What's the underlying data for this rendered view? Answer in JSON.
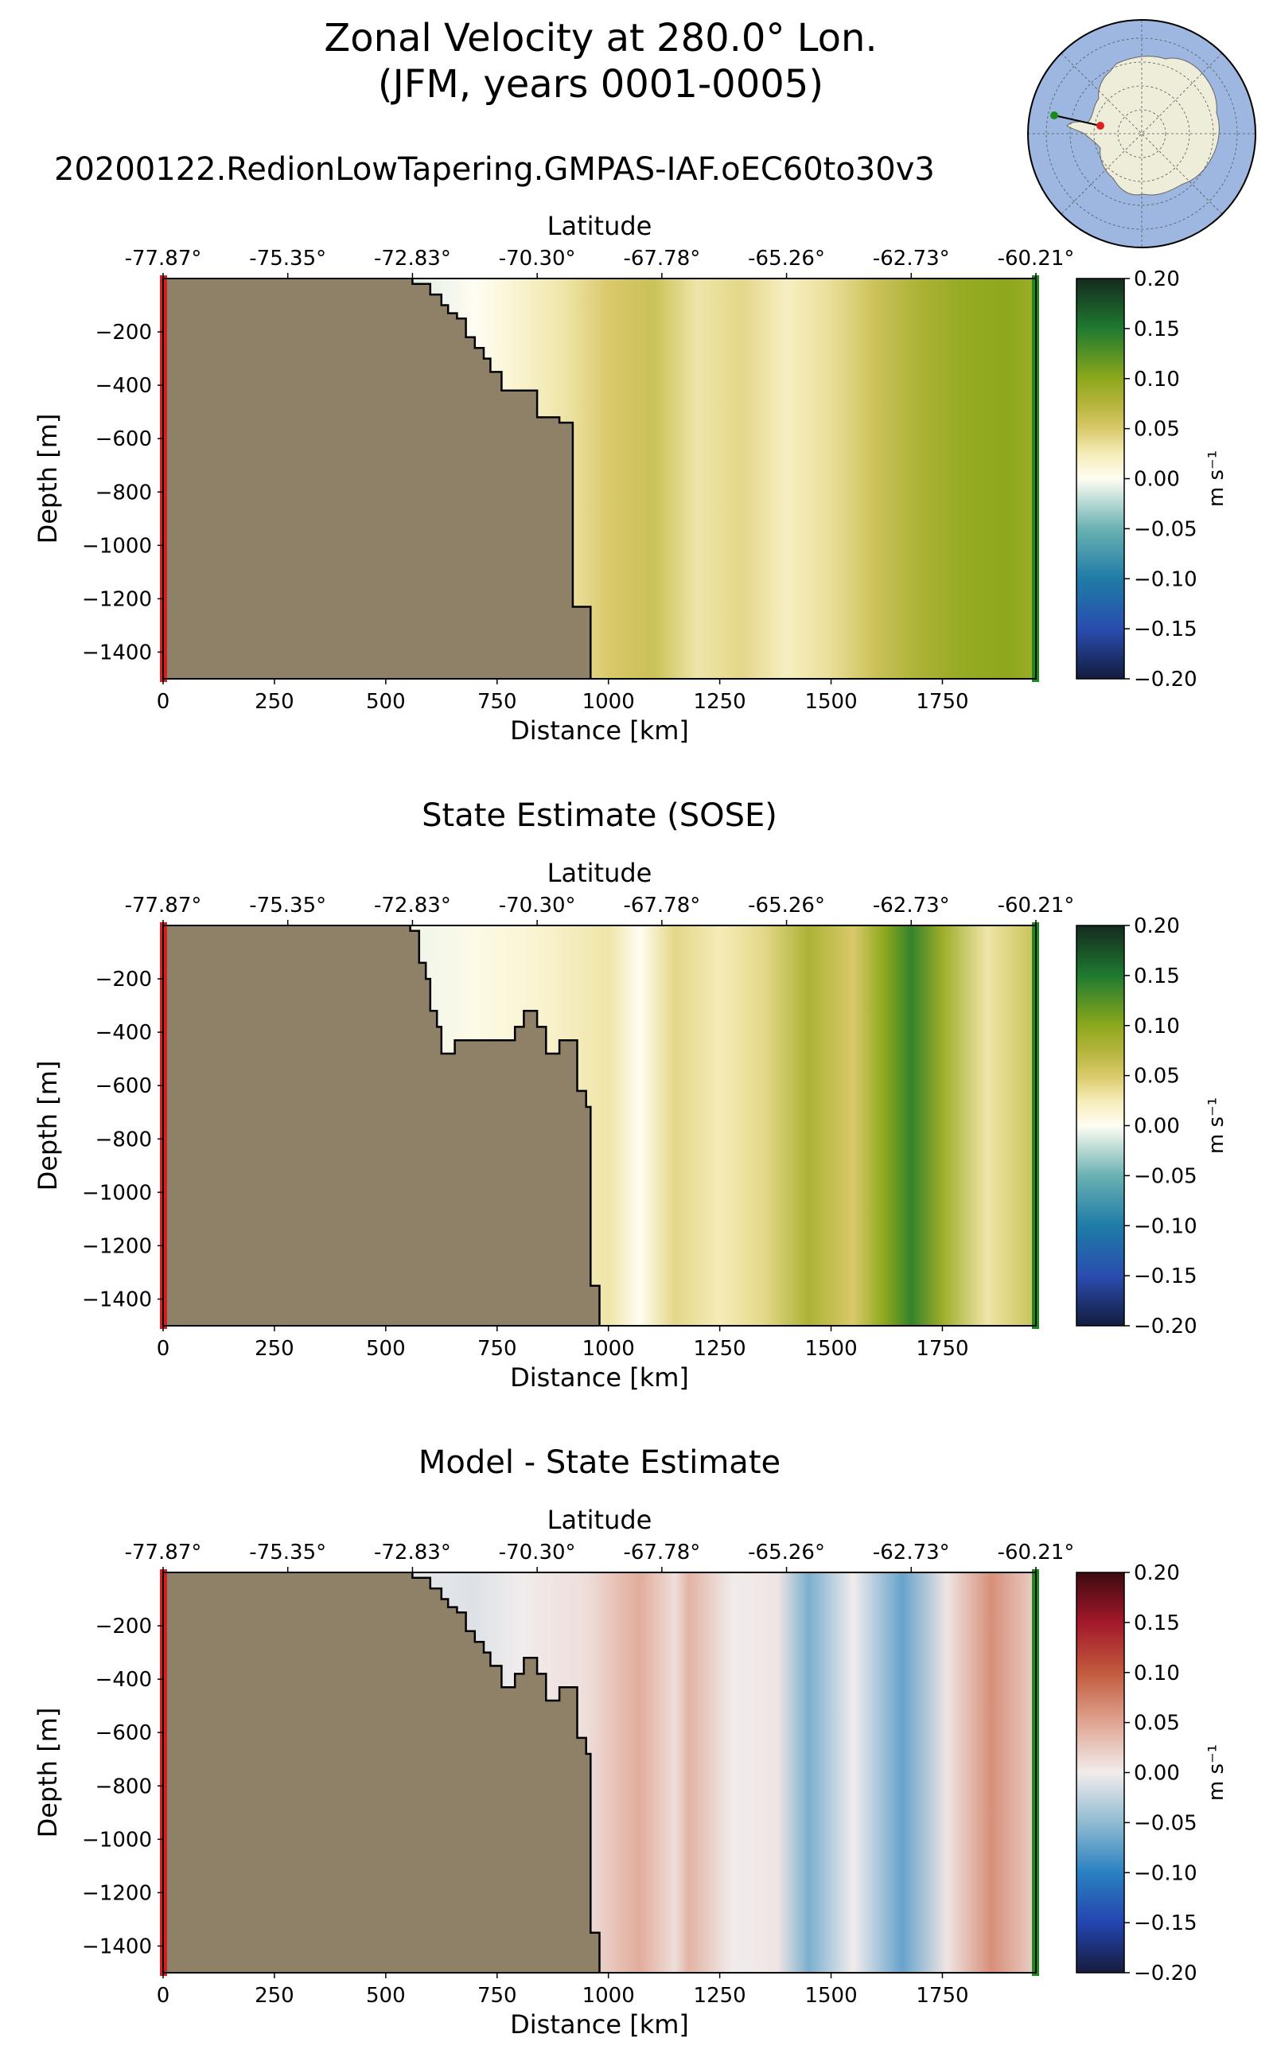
{
  "title": {
    "line1": "Zonal Velocity at 280.0° Lon.",
    "line2": "(JFM, years 0001-0005)",
    "run": "20200122.RedionLowTapering.GMPAS-IAF.oEC60to30v3"
  },
  "colors": {
    "land": "#8f8068",
    "start_marker": "#d62020",
    "end_marker": "#1a8a1a",
    "map_ocean": "#9db7e0",
    "map_land": "#eeedd9"
  },
  "chart_data": [
    {
      "type": "heatmap",
      "title": "",
      "xlabel": "Distance [km]",
      "ylabel": "Depth [m]",
      "top_xlabel": "Latitude",
      "top_ticks": [
        "-77.87°",
        "-75.35°",
        "-72.83°",
        "-70.30°",
        "-67.78°",
        "-65.26°",
        "-62.73°",
        "-60.21°"
      ],
      "xlim": [
        0,
        1960
      ],
      "ylim": [
        -1500,
        0
      ],
      "xticks": [
        0,
        250,
        500,
        750,
        1000,
        1250,
        1500,
        1750
      ],
      "yticks": [
        -200,
        -400,
        -600,
        -800,
        -1000,
        -1200,
        -1400
      ],
      "colorbar": {
        "label": "m s⁻¹",
        "cmap": "speed",
        "ticks": [
          "0.20",
          "0.15",
          "0.10",
          "0.05",
          "0.00",
          "−0.05",
          "−0.10",
          "−0.15",
          "−0.20"
        ],
        "range": [
          -0.2,
          0.2
        ]
      },
      "bathymetry": [
        [
          560,
          0
        ],
        [
          560,
          -20
        ],
        [
          600,
          -20
        ],
        [
          600,
          -60
        ],
        [
          625,
          -60
        ],
        [
          625,
          -100
        ],
        [
          640,
          -100
        ],
        [
          640,
          -130
        ],
        [
          660,
          -130
        ],
        [
          660,
          -150
        ],
        [
          680,
          -150
        ],
        [
          680,
          -220
        ],
        [
          700,
          -220
        ],
        [
          700,
          -260
        ],
        [
          720,
          -260
        ],
        [
          720,
          -300
        ],
        [
          735,
          -300
        ],
        [
          735,
          -350
        ],
        [
          760,
          -350
        ],
        [
          760,
          -420
        ],
        [
          840,
          -420
        ],
        [
          840,
          -520
        ],
        [
          890,
          -520
        ],
        [
          890,
          -540
        ],
        [
          920,
          -540
        ],
        [
          920,
          -1230
        ],
        [
          960,
          -1230
        ],
        [
          960,
          -1500
        ]
      ],
      "velocity_profile": [
        {
          "x": 560,
          "v": -0.01
        },
        {
          "x": 700,
          "v": 0.0
        },
        {
          "x": 800,
          "v": 0.015
        },
        {
          "x": 900,
          "v": 0.03
        },
        {
          "x": 1000,
          "v": 0.05
        },
        {
          "x": 1100,
          "v": 0.06
        },
        {
          "x": 1200,
          "v": 0.03
        },
        {
          "x": 1300,
          "v": 0.04
        },
        {
          "x": 1400,
          "v": 0.02
        },
        {
          "x": 1500,
          "v": 0.035
        },
        {
          "x": 1600,
          "v": 0.06
        },
        {
          "x": 1700,
          "v": 0.08
        },
        {
          "x": 1800,
          "v": 0.095
        },
        {
          "x": 1900,
          "v": 0.1
        },
        {
          "x": 1960,
          "v": 0.09
        }
      ]
    },
    {
      "type": "heatmap",
      "title": "State Estimate (SOSE)",
      "xlabel": "Distance [km]",
      "ylabel": "Depth [m]",
      "top_xlabel": "Latitude",
      "top_ticks": [
        "-77.87°",
        "-75.35°",
        "-72.83°",
        "-70.30°",
        "-67.78°",
        "-65.26°",
        "-62.73°",
        "-60.21°"
      ],
      "xlim": [
        0,
        1960
      ],
      "ylim": [
        -1500,
        0
      ],
      "xticks": [
        0,
        250,
        500,
        750,
        1000,
        1250,
        1500,
        1750
      ],
      "yticks": [
        -200,
        -400,
        -600,
        -800,
        -1000,
        -1200,
        -1400
      ],
      "colorbar": {
        "label": "m s⁻¹",
        "cmap": "speed",
        "ticks": [
          "0.20",
          "0.15",
          "0.10",
          "0.05",
          "0.00",
          "−0.05",
          "−0.10",
          "−0.15",
          "−0.20"
        ],
        "range": [
          -0.2,
          0.2
        ]
      },
      "bathymetry": [
        [
          555,
          0
        ],
        [
          555,
          -20
        ],
        [
          575,
          -20
        ],
        [
          575,
          -140
        ],
        [
          590,
          -140
        ],
        [
          590,
          -200
        ],
        [
          600,
          -200
        ],
        [
          600,
          -320
        ],
        [
          615,
          -320
        ],
        [
          615,
          -380
        ],
        [
          625,
          -380
        ],
        [
          625,
          -480
        ],
        [
          655,
          -480
        ],
        [
          655,
          -430
        ],
        [
          790,
          -430
        ],
        [
          790,
          -380
        ],
        [
          810,
          -380
        ],
        [
          810,
          -320
        ],
        [
          840,
          -320
        ],
        [
          840,
          -380
        ],
        [
          860,
          -380
        ],
        [
          860,
          -480
        ],
        [
          890,
          -480
        ],
        [
          890,
          -430
        ],
        [
          930,
          -430
        ],
        [
          930,
          -620
        ],
        [
          950,
          -620
        ],
        [
          950,
          -680
        ],
        [
          960,
          -680
        ],
        [
          960,
          -1350
        ],
        [
          980,
          -1350
        ],
        [
          980,
          -1500
        ]
      ],
      "velocity_profile": [
        {
          "x": 555,
          "v": -0.005
        },
        {
          "x": 700,
          "v": 0.005
        },
        {
          "x": 850,
          "v": 0.015
        },
        {
          "x": 1000,
          "v": 0.03
        },
        {
          "x": 1070,
          "v": 0.0
        },
        {
          "x": 1150,
          "v": 0.04
        },
        {
          "x": 1250,
          "v": 0.025
        },
        {
          "x": 1350,
          "v": 0.04
        },
        {
          "x": 1450,
          "v": 0.08
        },
        {
          "x": 1550,
          "v": 0.05
        },
        {
          "x": 1620,
          "v": 0.1
        },
        {
          "x": 1680,
          "v": 0.14
        },
        {
          "x": 1750,
          "v": 0.09
        },
        {
          "x": 1850,
          "v": 0.03
        },
        {
          "x": 1960,
          "v": 0.06
        }
      ]
    },
    {
      "type": "heatmap",
      "title": "Model - State Estimate",
      "xlabel": "Distance [km]",
      "ylabel": "Depth [m]",
      "top_xlabel": "Latitude",
      "top_ticks": [
        "-77.87°",
        "-75.35°",
        "-72.83°",
        "-70.30°",
        "-67.78°",
        "-65.26°",
        "-62.73°",
        "-60.21°"
      ],
      "xlim": [
        0,
        1960
      ],
      "ylim": [
        -1500,
        0
      ],
      "xticks": [
        0,
        250,
        500,
        750,
        1000,
        1250,
        1500,
        1750
      ],
      "yticks": [
        -200,
        -400,
        -600,
        -800,
        -1000,
        -1200,
        -1400
      ],
      "colorbar": {
        "label": "m s⁻¹",
        "cmap": "balance",
        "ticks": [
          "0.20",
          "0.15",
          "0.10",
          "0.05",
          "0.00",
          "−0.05",
          "−0.10",
          "−0.15",
          "−0.20"
        ],
        "range": [
          -0.2,
          0.2
        ]
      },
      "bathymetry": [
        [
          560,
          0
        ],
        [
          560,
          -20
        ],
        [
          600,
          -20
        ],
        [
          600,
          -60
        ],
        [
          625,
          -60
        ],
        [
          625,
          -100
        ],
        [
          640,
          -100
        ],
        [
          640,
          -130
        ],
        [
          660,
          -130
        ],
        [
          660,
          -150
        ],
        [
          680,
          -150
        ],
        [
          680,
          -220
        ],
        [
          700,
          -220
        ],
        [
          700,
          -260
        ],
        [
          720,
          -260
        ],
        [
          720,
          -300
        ],
        [
          735,
          -300
        ],
        [
          735,
          -350
        ],
        [
          760,
          -350
        ],
        [
          760,
          -430
        ],
        [
          790,
          -430
        ],
        [
          790,
          -380
        ],
        [
          810,
          -380
        ],
        [
          810,
          -320
        ],
        [
          840,
          -320
        ],
        [
          840,
          -380
        ],
        [
          860,
          -380
        ],
        [
          860,
          -480
        ],
        [
          890,
          -480
        ],
        [
          890,
          -430
        ],
        [
          930,
          -430
        ],
        [
          930,
          -620
        ],
        [
          950,
          -620
        ],
        [
          950,
          -680
        ],
        [
          960,
          -680
        ],
        [
          960,
          -1350
        ],
        [
          980,
          -1350
        ],
        [
          980,
          -1500
        ]
      ],
      "velocity_profile": [
        {
          "x": 560,
          "v": -0.005
        },
        {
          "x": 700,
          "v": -0.01
        },
        {
          "x": 800,
          "v": 0.0
        },
        {
          "x": 950,
          "v": 0.01
        },
        {
          "x": 1070,
          "v": 0.045
        },
        {
          "x": 1150,
          "v": 0.01
        },
        {
          "x": 1180,
          "v": 0.04
        },
        {
          "x": 1280,
          "v": 0.0
        },
        {
          "x": 1380,
          "v": 0.005
        },
        {
          "x": 1450,
          "v": -0.06
        },
        {
          "x": 1550,
          "v": 0.0
        },
        {
          "x": 1660,
          "v": -0.07
        },
        {
          "x": 1760,
          "v": 0.005
        },
        {
          "x": 1860,
          "v": 0.065
        },
        {
          "x": 1960,
          "v": 0.02
        }
      ]
    }
  ]
}
